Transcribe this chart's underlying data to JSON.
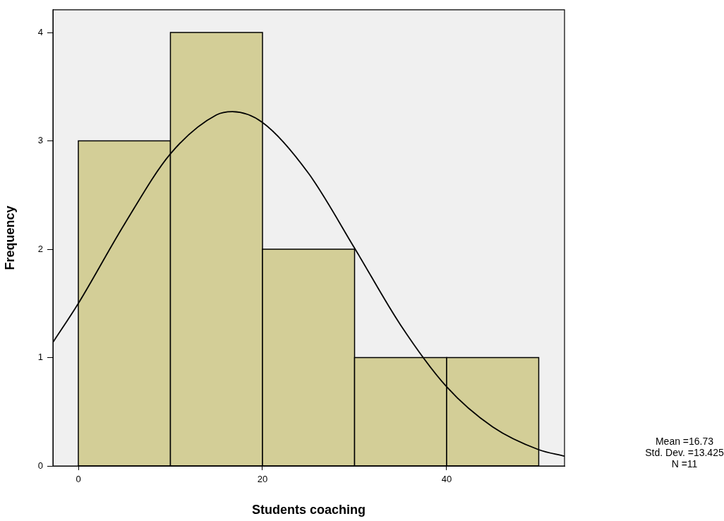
{
  "chart_data": {
    "type": "histogram",
    "xlabel": "Students coaching",
    "ylabel": "Frequency",
    "bins": [
      0,
      10,
      20,
      30,
      40,
      50
    ],
    "values": [
      3,
      4,
      2,
      1,
      1
    ],
    "color": "#d3ce97",
    "series": [
      {
        "type": "line",
        "color": "#000000",
        "x": [
          -2.76,
          0,
          5,
          10,
          15,
          16.73,
          20,
          25,
          30,
          35,
          40,
          45,
          50,
          52.8
        ],
        "values": [
          1.14,
          1.5,
          2.23,
          2.88,
          3.24,
          3.27,
          3.17,
          2.7,
          2.01,
          1.3,
          0.73,
          0.36,
          0.15,
          0.09
        ]
      }
    ],
    "xlim": [
      -2.76,
      52.8
    ],
    "xticks": [
      0,
      20,
      40
    ],
    "ylim": [
      0,
      4.21
    ],
    "yticks": [
      0,
      1,
      2,
      3,
      4
    ],
    "annotations": [
      "Mean =16.73",
      "Std. Dev. =13.425",
      "N =11"
    ]
  }
}
